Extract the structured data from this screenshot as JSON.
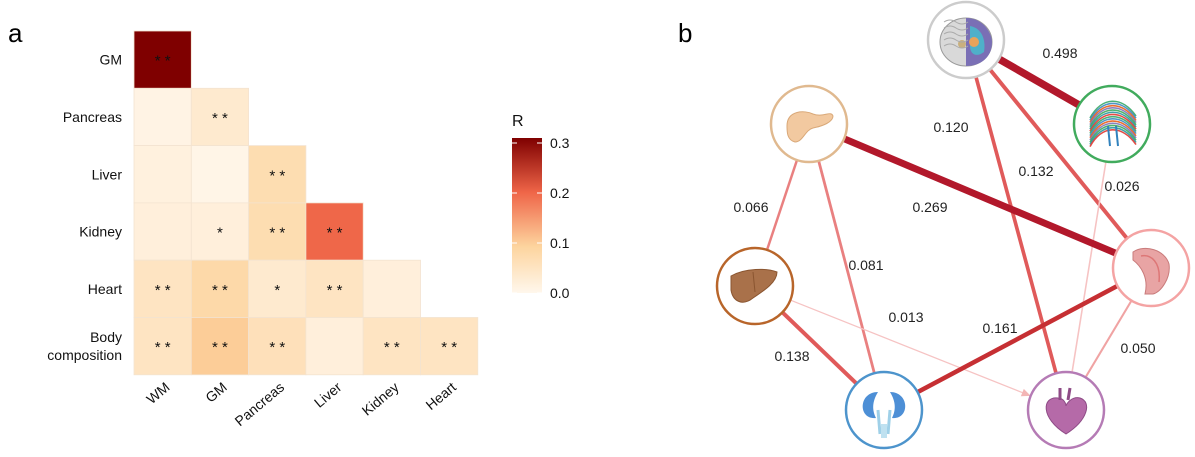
{
  "panels": {
    "a": "a",
    "b": "b"
  },
  "chart_data": [
    {
      "type": "heatmap",
      "rows": [
        "GM",
        "Pancreas",
        "Liver",
        "Kidney",
        "Heart",
        "Body\ncomposition"
      ],
      "columns": [
        "WM",
        "GM",
        "Pancreas",
        "Liver",
        "Kidney",
        "Heart"
      ],
      "cells": [
        [
          {
            "value": 0.31,
            "sig": "* *"
          }
        ],
        [
          {
            "value": 0.01,
            "sig": ""
          },
          {
            "value": 0.035,
            "sig": "* *"
          }
        ],
        [
          {
            "value": 0.017,
            "sig": ""
          },
          {
            "value": 0.006,
            "sig": ""
          },
          {
            "value": 0.07,
            "sig": "* *"
          }
        ],
        [
          {
            "value": 0.02,
            "sig": ""
          },
          {
            "value": 0.02,
            "sig": "*"
          },
          {
            "value": 0.07,
            "sig": "* *"
          },
          {
            "value": 0.2,
            "sig": "* *"
          }
        ],
        [
          {
            "value": 0.05,
            "sig": "* *"
          },
          {
            "value": 0.08,
            "sig": "* *"
          },
          {
            "value": 0.035,
            "sig": "*"
          },
          {
            "value": 0.05,
            "sig": "* *"
          },
          {
            "value": 0.02,
            "sig": ""
          }
        ],
        [
          {
            "value": 0.05,
            "sig": "* *"
          },
          {
            "value": 0.1,
            "sig": "* *"
          },
          {
            "value": 0.06,
            "sig": "* *"
          },
          {
            "value": 0.02,
            "sig": ""
          },
          {
            "value": 0.05,
            "sig": "* *"
          },
          {
            "value": 0.05,
            "sig": "* *"
          }
        ]
      ],
      "legend": {
        "title": "R",
        "ticks": [
          0.3,
          0.2,
          0.1,
          0.0
        ],
        "tick_labels": [
          "0.3",
          "0.2",
          "0.1",
          "0.0"
        ],
        "range": [
          0,
          0.31
        ]
      },
      "colors": {
        "low": "#fff7ec",
        "mid": "#fdd49e",
        "high": "#ef6548",
        "max": "#7f0000"
      }
    },
    {
      "type": "network",
      "nodes": [
        {
          "id": "brain",
          "icon": "brain-icon",
          "ring": "#cccccc"
        },
        {
          "id": "wm",
          "icon": "white-matter-icon",
          "ring": "#41ab5d"
        },
        {
          "id": "pancreas",
          "icon": "pancreas-icon",
          "ring": "#e0b98f"
        },
        {
          "id": "body",
          "icon": "muscle-icon",
          "ring": "#f4a3a3"
        },
        {
          "id": "liver",
          "icon": "liver-icon",
          "ring": "#b8652a"
        },
        {
          "id": "kidney",
          "icon": "kidney-icon",
          "ring": "#4d94cc"
        },
        {
          "id": "heart",
          "icon": "heart-icon",
          "ring": "#b57bb5"
        }
      ],
      "edges": [
        {
          "from": "brain",
          "to": "wm",
          "value": 0.498,
          "label": "0.498"
        },
        {
          "from": "brain",
          "to": "heart",
          "value": 0.12,
          "label": "0.120"
        },
        {
          "from": "brain",
          "to": "body",
          "value": 0.132,
          "label": "0.132"
        },
        {
          "from": "wm",
          "to": "heart",
          "value": 0.026,
          "label": "0.026"
        },
        {
          "from": "pancreas",
          "to": "body",
          "value": 0.269,
          "label": "0.269"
        },
        {
          "from": "pancreas",
          "to": "liver",
          "value": 0.066,
          "label": "0.066"
        },
        {
          "from": "pancreas",
          "to": "kidney",
          "value": 0.081,
          "label": "0.081"
        },
        {
          "from": "liver",
          "to": "heart",
          "value": 0.013,
          "label": "0.013"
        },
        {
          "from": "liver",
          "to": "kidney",
          "value": 0.138,
          "label": "0.138"
        },
        {
          "from": "body",
          "to": "kidney",
          "value": 0.161,
          "label": "0.161"
        },
        {
          "from": "body",
          "to": "heart",
          "value": 0.05,
          "label": "0.050"
        }
      ]
    }
  ]
}
